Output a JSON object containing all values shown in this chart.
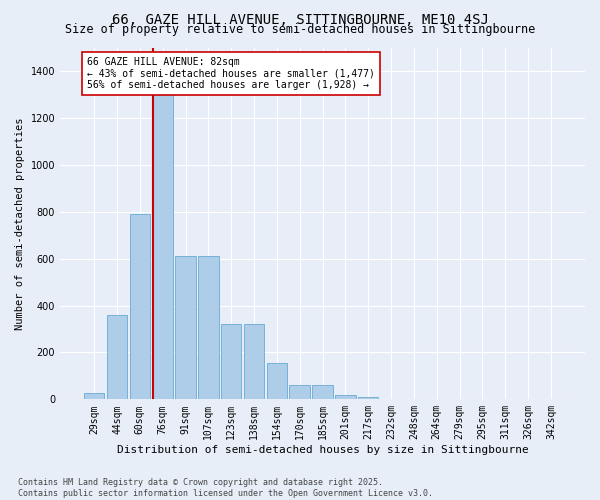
{
  "title_line1": "66, GAZE HILL AVENUE, SITTINGBOURNE, ME10 4SJ",
  "title_line2": "Size of property relative to semi-detached houses in Sittingbourne",
  "xlabel": "Distribution of semi-detached houses by size in Sittingbourne",
  "ylabel": "Number of semi-detached properties",
  "footer": "Contains HM Land Registry data © Crown copyright and database right 2025.\nContains public sector information licensed under the Open Government Licence v3.0.",
  "bin_labels": [
    "29sqm",
    "44sqm",
    "60sqm",
    "76sqm",
    "91sqm",
    "107sqm",
    "123sqm",
    "138sqm",
    "154sqm",
    "170sqm",
    "185sqm",
    "201sqm",
    "217sqm",
    "232sqm",
    "248sqm",
    "264sqm",
    "279sqm",
    "295sqm",
    "311sqm",
    "326sqm",
    "342sqm"
  ],
  "bar_values": [
    25,
    360,
    790,
    1340,
    610,
    610,
    320,
    320,
    155,
    60,
    60,
    20,
    8,
    0,
    0,
    0,
    0,
    0,
    0,
    0,
    0
  ],
  "bar_color": "#AECDE8",
  "bar_edge_color": "#6AAAD4",
  "background_color": "#E8EEF8",
  "grid_color": "#FFFFFF",
  "vline_x": 2.575,
  "vline_color": "#CC0000",
  "annotation_title": "66 GAZE HILL AVENUE: 82sqm",
  "annotation_line2": "← 43% of semi-detached houses are smaller (1,477)",
  "annotation_line3": "56% of semi-detached houses are larger (1,928) →",
  "annotation_box_color": "#FFFFFF",
  "annotation_box_edge": "#CC0000",
  "ylim": [
    0,
    1500
  ],
  "yticks": [
    0,
    200,
    400,
    600,
    800,
    1000,
    1200,
    1400
  ],
  "title1_fontsize": 10,
  "title2_fontsize": 8.5,
  "xlabel_fontsize": 8,
  "ylabel_fontsize": 7.5,
  "tick_fontsize": 7,
  "annot_fontsize": 7,
  "footer_fontsize": 6
}
